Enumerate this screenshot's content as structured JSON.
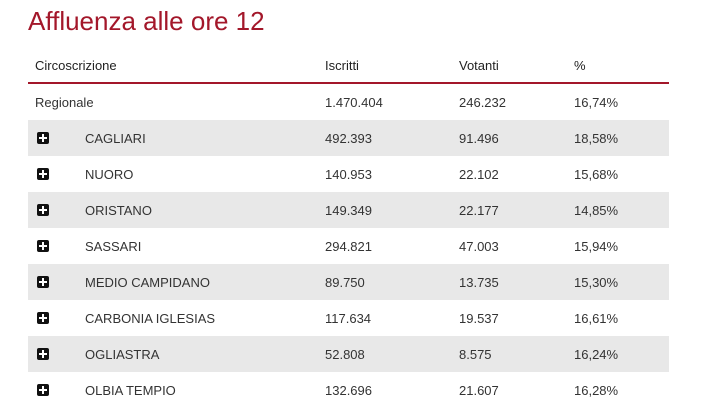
{
  "title": "Affluenza alle ore 12",
  "columns": {
    "circoscrizione": "Circoscrizione",
    "iscritti": "Iscritti",
    "votanti": "Votanti",
    "percent": "%"
  },
  "regional": {
    "name": "Regionale",
    "iscritti": "1.470.404",
    "votanti": "246.232",
    "percent": "16,74%"
  },
  "rows": [
    {
      "name": "CAGLIARI",
      "iscritti": "492.393",
      "votanti": "91.496",
      "percent": "18,58%"
    },
    {
      "name": "NUORO",
      "iscritti": "140.953",
      "votanti": "22.102",
      "percent": "15,68%"
    },
    {
      "name": "ORISTANO",
      "iscritti": "149.349",
      "votanti": "22.177",
      "percent": "14,85%"
    },
    {
      "name": "SASSARI",
      "iscritti": "294.821",
      "votanti": "47.003",
      "percent": "15,94%"
    },
    {
      "name": "MEDIO CAMPIDANO",
      "iscritti": "89.750",
      "votanti": "13.735",
      "percent": "15,30%"
    },
    {
      "name": "CARBONIA IGLESIAS",
      "iscritti": "117.634",
      "votanti": "19.537",
      "percent": "16,61%"
    },
    {
      "name": "OGLIASTRA",
      "iscritti": "52.808",
      "votanti": "8.575",
      "percent": "16,24%"
    },
    {
      "name": "OLBIA TEMPIO",
      "iscritti": "132.696",
      "votanti": "21.607",
      "percent": "16,28%"
    }
  ],
  "icons": {
    "expand": "plus-square-icon"
  },
  "colors": {
    "accent": "#a3172a",
    "row_shade": "#e8e8e8",
    "text": "#333333"
  }
}
